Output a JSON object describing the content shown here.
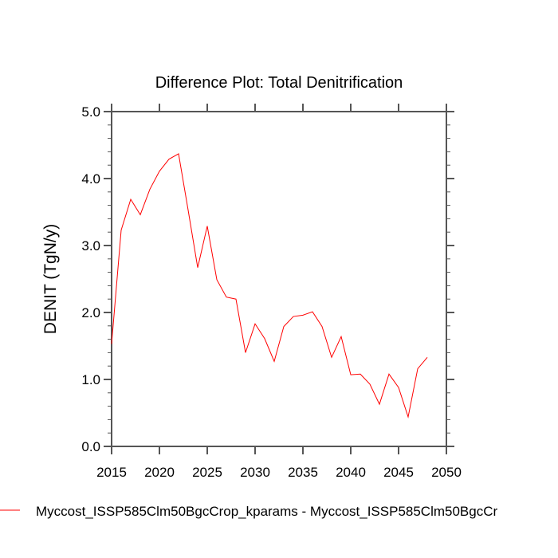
{
  "chart_data": {
    "type": "line",
    "title": "Difference Plot: Total Denitrification",
    "xlabel": "",
    "ylabel": "DENIT  (TgN/y)",
    "xlim": [
      2015,
      2050
    ],
    "ylim": [
      0,
      5
    ],
    "x_ticks": [
      "2015",
      "2020",
      "2025",
      "2030",
      "2035",
      "2040",
      "2045",
      "2050"
    ],
    "y_ticks": [
      "0.0",
      "1.0",
      "2.0",
      "3.0",
      "4.0",
      "5.0"
    ],
    "grid": false,
    "legend_position": "bottom",
    "series": [
      {
        "name": "Myccost_ISSP585Clm50BgcCrop_kparams - Myccost_ISSP585Clm50BgcCr",
        "color": "#ff0000",
        "x": [
          2015,
          2016,
          2017,
          2018,
          2019,
          2020,
          2021,
          2022,
          2023,
          2024,
          2025,
          2026,
          2027,
          2028,
          2029,
          2030,
          2031,
          2032,
          2033,
          2034,
          2035,
          2036,
          2037,
          2038,
          2039,
          2040,
          2041,
          2042,
          2043,
          2044,
          2045,
          2046,
          2047,
          2048
        ],
        "y": [
          1.53,
          3.23,
          3.69,
          3.46,
          3.84,
          4.11,
          4.29,
          4.37,
          3.53,
          2.67,
          3.29,
          2.49,
          2.23,
          2.2,
          1.4,
          1.83,
          1.61,
          1.27,
          1.79,
          1.94,
          1.96,
          2.01,
          1.79,
          1.33,
          1.64,
          1.07,
          1.08,
          0.93,
          0.63,
          1.08,
          0.88,
          0.44,
          1.16,
          1.33
        ]
      }
    ]
  }
}
